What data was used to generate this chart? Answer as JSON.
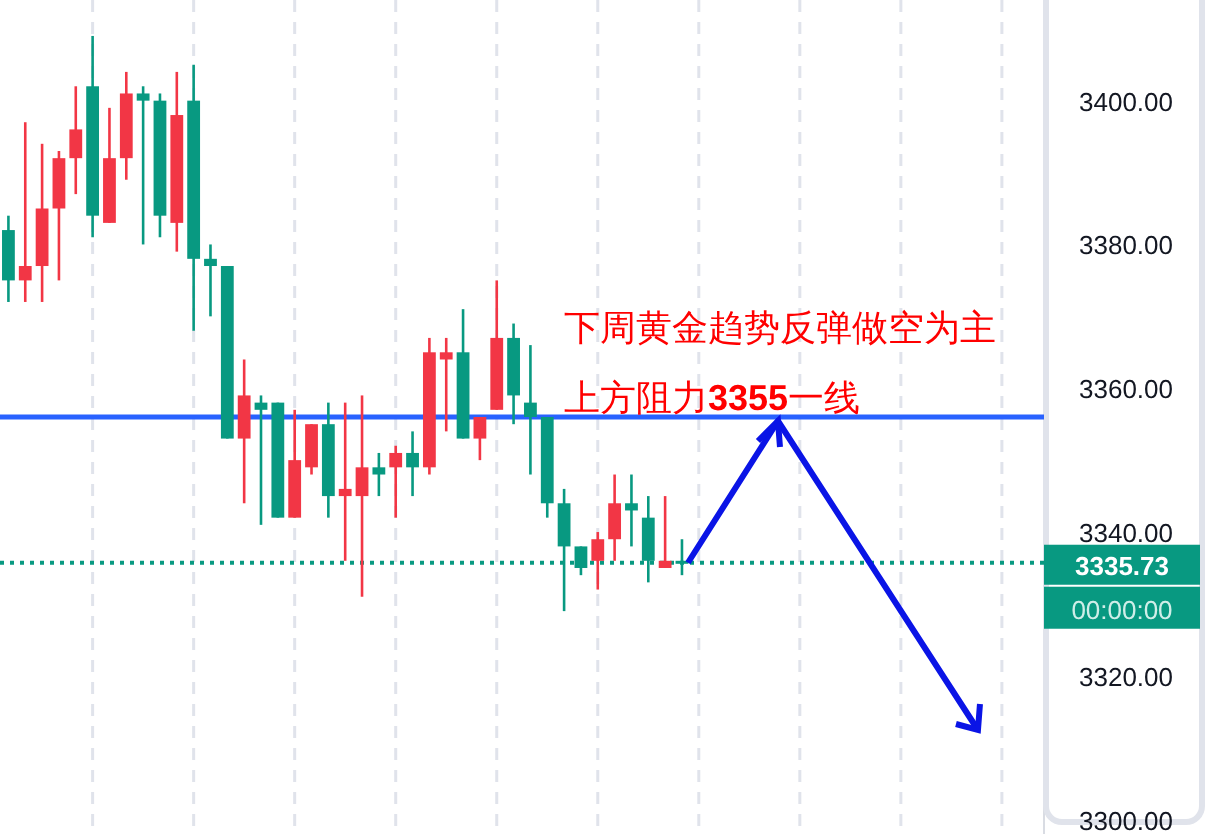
{
  "chart_data": {
    "type": "candlestick",
    "categories": [
      null,
      null,
      null,
      null,
      null,
      null,
      null,
      null,
      null,
      null,
      null,
      null,
      null,
      null,
      null,
      null,
      null,
      null,
      null,
      null,
      null,
      null,
      null,
      null,
      null,
      null,
      null,
      null,
      null,
      null,
      null,
      null,
      null,
      null,
      null,
      null,
      null,
      null,
      null,
      null,
      null,
      null,
      null,
      null,
      null,
      null,
      null,
      null,
      null,
      null,
      null,
      null,
      null,
      null,
      null,
      null,
      null,
      null,
      null,
      null,
      null,
      null
    ],
    "ohlc": [
      [
        3382,
        3384,
        3372,
        3375
      ],
      [
        3375,
        3397,
        3372,
        3377
      ],
      [
        3377,
        3394,
        3372,
        3385
      ],
      [
        3385,
        3393,
        3375,
        3392
      ],
      [
        3392,
        3402,
        3387,
        3396
      ],
      [
        3402,
        3409,
        3381,
        3384
      ],
      [
        3383,
        3399,
        3383,
        3392
      ],
      [
        3392,
        3404,
        3389,
        3401
      ],
      [
        3401,
        3402,
        3380,
        3400
      ],
      [
        3400,
        3401,
        3381,
        3384
      ],
      [
        3383,
        3404,
        3379,
        3398
      ],
      [
        3400,
        3405,
        3368,
        3378
      ],
      [
        3378,
        3380,
        3370,
        3377
      ],
      [
        3377,
        3377,
        3353,
        3353
      ],
      [
        3353,
        3364,
        3344,
        3359
      ],
      [
        3358,
        3359,
        3341,
        3357
      ],
      [
        3358,
        3358,
        3342,
        3342
      ],
      [
        3342,
        3357,
        3342,
        3350
      ],
      [
        3349,
        3355,
        3348,
        3355
      ],
      [
        3355,
        3358,
        3342,
        3345
      ],
      [
        3345,
        3358,
        3336,
        3346
      ],
      [
        3345,
        3359,
        3331,
        3349
      ],
      [
        3349,
        3351,
        3345,
        3348
      ],
      [
        3349,
        3352,
        3342,
        3351
      ],
      [
        3351,
        3354,
        3345,
        3349
      ],
      [
        3349,
        3367,
        3348,
        3365
      ],
      [
        3364,
        3367,
        3354,
        3365
      ],
      [
        3365,
        3371,
        3353,
        3353
      ],
      [
        3353,
        3356,
        3350,
        3356
      ],
      [
        3357,
        3375,
        3357,
        3367
      ],
      [
        3367,
        3369,
        3355,
        3359
      ],
      [
        3358,
        3366,
        3348,
        3356
      ],
      [
        3356,
        3356,
        3342,
        3344
      ],
      [
        3344,
        3346,
        3329,
        3338
      ],
      [
        3338,
        3338,
        3334,
        3335
      ],
      [
        3336,
        3340,
        3332,
        3339
      ],
      [
        3339,
        3348,
        3336,
        3344
      ],
      [
        3344,
        3348,
        3338,
        3343
      ],
      [
        3342,
        3345,
        3333,
        3336
      ],
      [
        3335,
        3345,
        3335,
        3336
      ],
      [
        3336,
        3339,
        3334,
        3335.73
      ],
      null,
      null,
      null,
      null,
      null,
      null,
      null,
      null,
      null,
      null,
      null,
      null,
      null,
      null,
      null,
      null,
      null,
      null,
      null,
      null,
      null
    ],
    "colors": [
      "#089981",
      "#f23645",
      "#f23645",
      "#f23645",
      "#f23645",
      "#089981",
      "#f23645",
      "#f23645",
      "#089981",
      "#089981",
      "#f23645",
      "#089981",
      "#089981",
      "#089981",
      "#f23645",
      "#089981",
      "#089981",
      "#f23645",
      "#f23645",
      "#089981",
      "#f23645",
      "#f23645",
      "#089981",
      "#f23645",
      "#089981",
      "#f23645",
      "#f23645",
      "#089981",
      "#f23645",
      "#f23645",
      "#089981",
      "#089981",
      "#089981",
      "#089981",
      "#089981",
      "#f23645",
      "#f23645",
      "#089981",
      "#089981",
      "#f23645",
      "#089981",
      null,
      null,
      null,
      null,
      null,
      null,
      null,
      null,
      null,
      null,
      null,
      null,
      null,
      null,
      null,
      null,
      null,
      null,
      null,
      null,
      null
    ],
    "ylim": [
      3298,
      3414
    ],
    "yticks": [
      {
        "value": 3300,
        "label": "3300.00"
      },
      {
        "value": 3320,
        "label": "3320.00"
      },
      {
        "value": 3340,
        "label": "3340.00"
      },
      {
        "value": 3360,
        "label": "3360.00"
      },
      {
        "value": 3380,
        "label": "3380.00"
      },
      {
        "value": 3400,
        "label": "3400.00"
      }
    ],
    "grid": "x",
    "ref_lines": [
      {
        "axis": "y",
        "value": 3356,
        "color": "#2962ff",
        "line_style": "solid"
      },
      {
        "axis": "y",
        "value": 3335.73,
        "label": "3335.73",
        "color": "#089981",
        "line_style": "dotted"
      }
    ],
    "annotations": [
      "下周黄金趋势反弹做空为主",
      "上方阻力**3355**一线",
      "00:00:00"
    ]
  }
}
